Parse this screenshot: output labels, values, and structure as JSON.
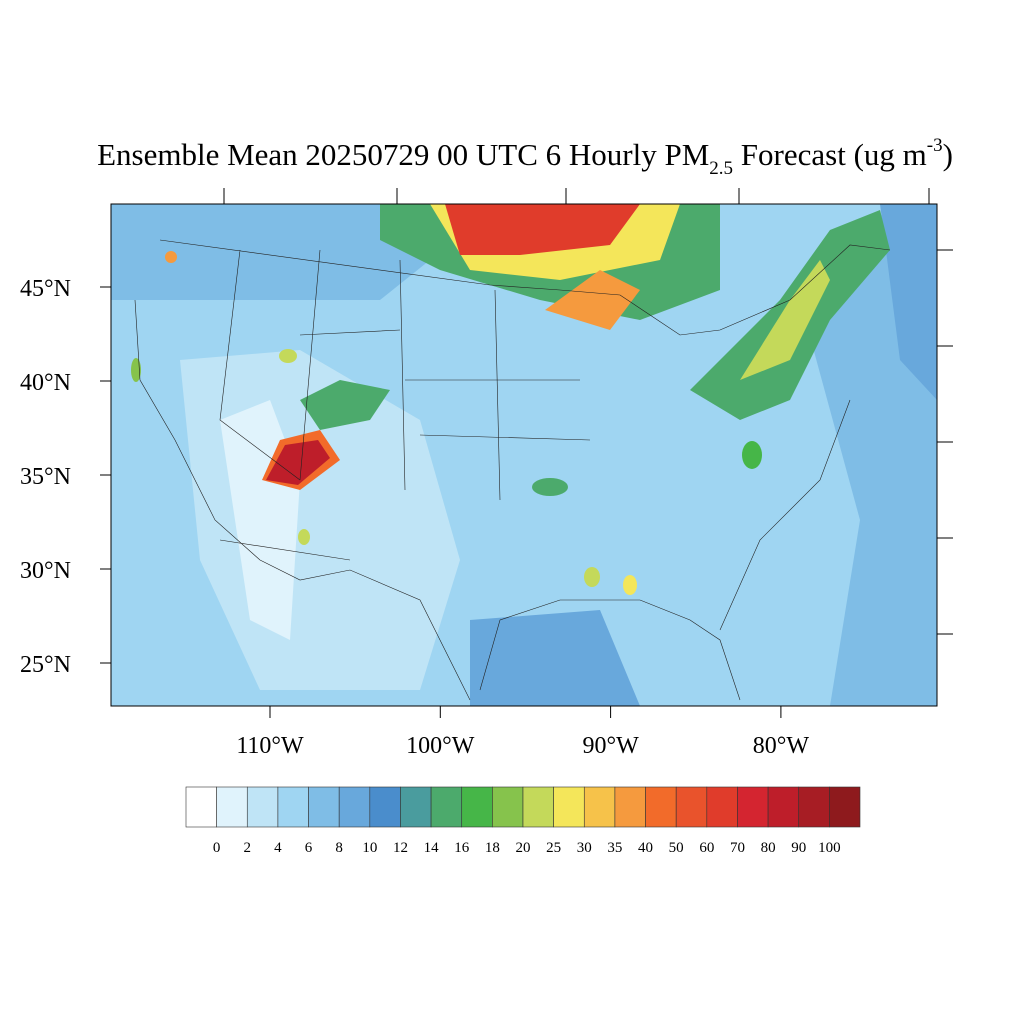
{
  "title": {
    "main": "Ensemble Mean 20250729 00 UTC 6 Hourly PM",
    "subscript": "2.5",
    "middle": " Forecast (ug m",
    "superscript": "-3",
    "end": ")"
  },
  "lat_labels": [
    "45°N",
    "40°N",
    "35°N",
    "30°N",
    "25°N"
  ],
  "lon_labels": [
    "110°W",
    "100°W",
    "90°W",
    "80°W"
  ],
  "colorbar": {
    "levels": [
      0,
      2,
      4,
      6,
      8,
      10,
      12,
      14,
      16,
      18,
      20,
      25,
      30,
      35,
      40,
      50,
      60,
      70,
      80,
      90,
      100
    ],
    "colors": [
      "#ffffff",
      "#e0f3fc",
      "#bfe4f6",
      "#9fd5f2",
      "#7fbde6",
      "#68a8dc",
      "#4a8dcc",
      "#4a9c9e",
      "#4caa6c",
      "#46b648",
      "#86c34c",
      "#c4d95a",
      "#f4e65a",
      "#f6c24a",
      "#f59a3e",
      "#f26b2a",
      "#e9532c",
      "#e03c2b",
      "#d42530",
      "#be1e2a",
      "#a71d24",
      "#8e1a1d"
    ]
  }
}
